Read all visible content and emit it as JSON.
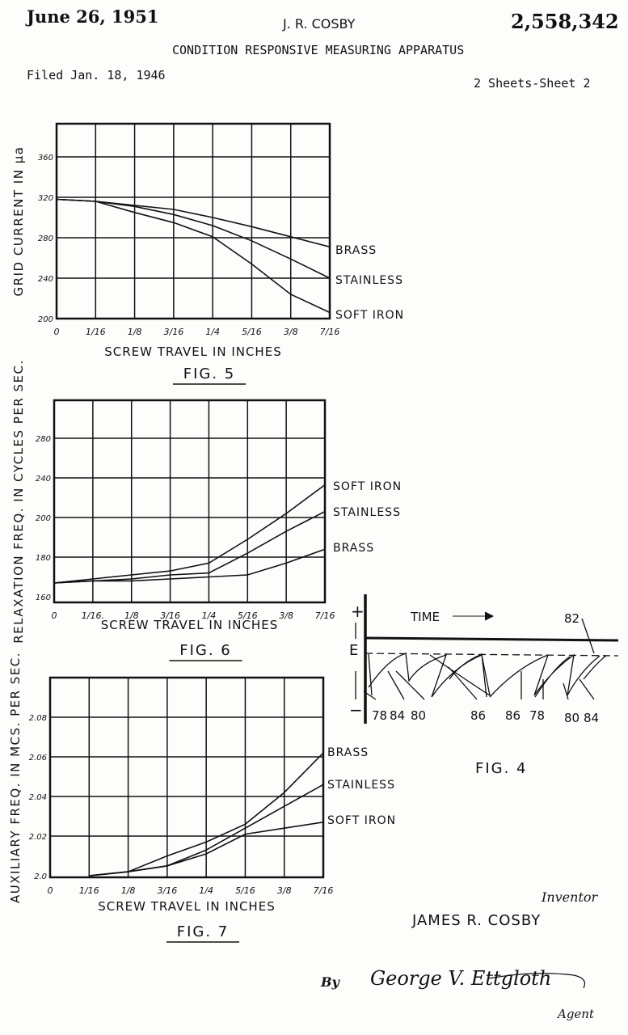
{
  "header": {
    "date": "June 26, 1951",
    "inventor_name": "J. R. COSBY",
    "patent_number": "2,558,342",
    "title": "CONDITION RESPONSIVE MEASURING APPARATUS",
    "filed": "Filed Jan. 18, 1946",
    "sheets": "2 Sheets-Sheet 2"
  },
  "chart_data": [
    {
      "type": "line",
      "title": "FIG. 5",
      "xlabel": "SCREW TRAVEL IN INCHES",
      "ylabel": "GRID CURRENT IN μa",
      "x": [
        0,
        0.0625,
        0.125,
        0.1875,
        0.25,
        0.3125,
        0.375,
        0.4375
      ],
      "xtick_labels": [
        "0",
        "1/16",
        "1/8",
        "3/16",
        "1/4",
        "5/16",
        "3/8",
        "7/16"
      ],
      "yticks": [
        200,
        240,
        280,
        320,
        360
      ],
      "ytick_labels": [
        "200",
        "240",
        "280",
        "320",
        "360"
      ],
      "ylim": [
        200,
        395
      ],
      "grid": true,
      "series": [
        {
          "name": "BRASS",
          "values": [
            318,
            316,
            312,
            308,
            300,
            291,
            281,
            271
          ]
        },
        {
          "name": "STAINLESS",
          "values": [
            318,
            316,
            311,
            303,
            292,
            277,
            259,
            240
          ]
        },
        {
          "name": "SOFT IRON",
          "values": [
            318,
            316,
            305,
            295,
            281,
            254,
            224,
            206
          ]
        }
      ]
    },
    {
      "type": "line",
      "title": "FIG. 6",
      "xlabel": "SCREW TRAVEL IN INCHES",
      "ylabel": "RELAXATION FREQ. IN CYCLES PER SEC.",
      "x": [
        0,
        0.0625,
        0.125,
        0.1875,
        0.25,
        0.3125,
        0.375,
        0.4375
      ],
      "xtick_labels": [
        "0",
        "1/16.",
        "1/8",
        "3/16",
        "1/4",
        "5/16",
        "3/8",
        "7/16"
      ],
      "yticks": [
        160,
        180,
        200,
        240,
        280
      ],
      "ytick_labels": [
        "160",
        "180",
        "200",
        "240",
        "280"
      ],
      "ylim": [
        160,
        320
      ],
      "grid": true,
      "series": [
        {
          "name": "SOFT IRON",
          "values": [
            167,
            169,
            171,
            173,
            177,
            189,
            204,
            233
          ]
        },
        {
          "name": "STAINLESS",
          "values": [
            167,
            168,
            169,
            171,
            172,
            182,
            193,
            206
          ]
        },
        {
          "name": "BRASS",
          "values": [
            167,
            168,
            168,
            169,
            170,
            171,
            177,
            184
          ]
        }
      ]
    },
    {
      "type": "line",
      "title": "FIG. 7",
      "xlabel": "SCREW TRAVEL IN INCHES",
      "ylabel": "AUXILIARY FREQ. IN MCS. PER SEC.",
      "x": [
        0,
        0.0625,
        0.125,
        0.1875,
        0.25,
        0.3125,
        0.375,
        0.4375
      ],
      "xtick_labels": [
        "0",
        "1/16",
        "1/8",
        "3/16",
        "1/4",
        "5/16",
        "3/8",
        "7/16"
      ],
      "yticks": [
        2.0,
        2.02,
        2.04,
        2.06,
        2.08
      ],
      "ytick_labels": [
        "2.0",
        "2.02",
        "2.04",
        "2.06",
        "2.08"
      ],
      "ylim": [
        2.0,
        2.1
      ],
      "grid": true,
      "series": [
        {
          "name": "BRASS",
          "values": [
            null,
            2.0,
            2.002,
            2.01,
            2.017,
            2.026,
            2.042,
            2.062
          ]
        },
        {
          "name": "STAINLESS",
          "values": [
            null,
            2.0,
            2.002,
            2.005,
            2.013,
            2.024,
            2.035,
            2.046
          ]
        },
        {
          "name": "SOFT IRON",
          "values": [
            null,
            2.0,
            2.002,
            2.005,
            2.011,
            2.021,
            2.024,
            2.027
          ]
        }
      ]
    }
  ],
  "fig4": {
    "title": "FIG. 4",
    "time_label": "TIME",
    "e_label": "E",
    "plus": "+",
    "minus": "−",
    "ref_82": "82",
    "refs": [
      "78",
      "84",
      "80",
      "86",
      "86",
      "78",
      "80",
      "84"
    ]
  },
  "footer": {
    "inventor_label": "Inventor",
    "inventor_full": "JAMES R. COSBY",
    "by": "By",
    "signature": "George V. Ettgloth",
    "agent": "Agent"
  }
}
